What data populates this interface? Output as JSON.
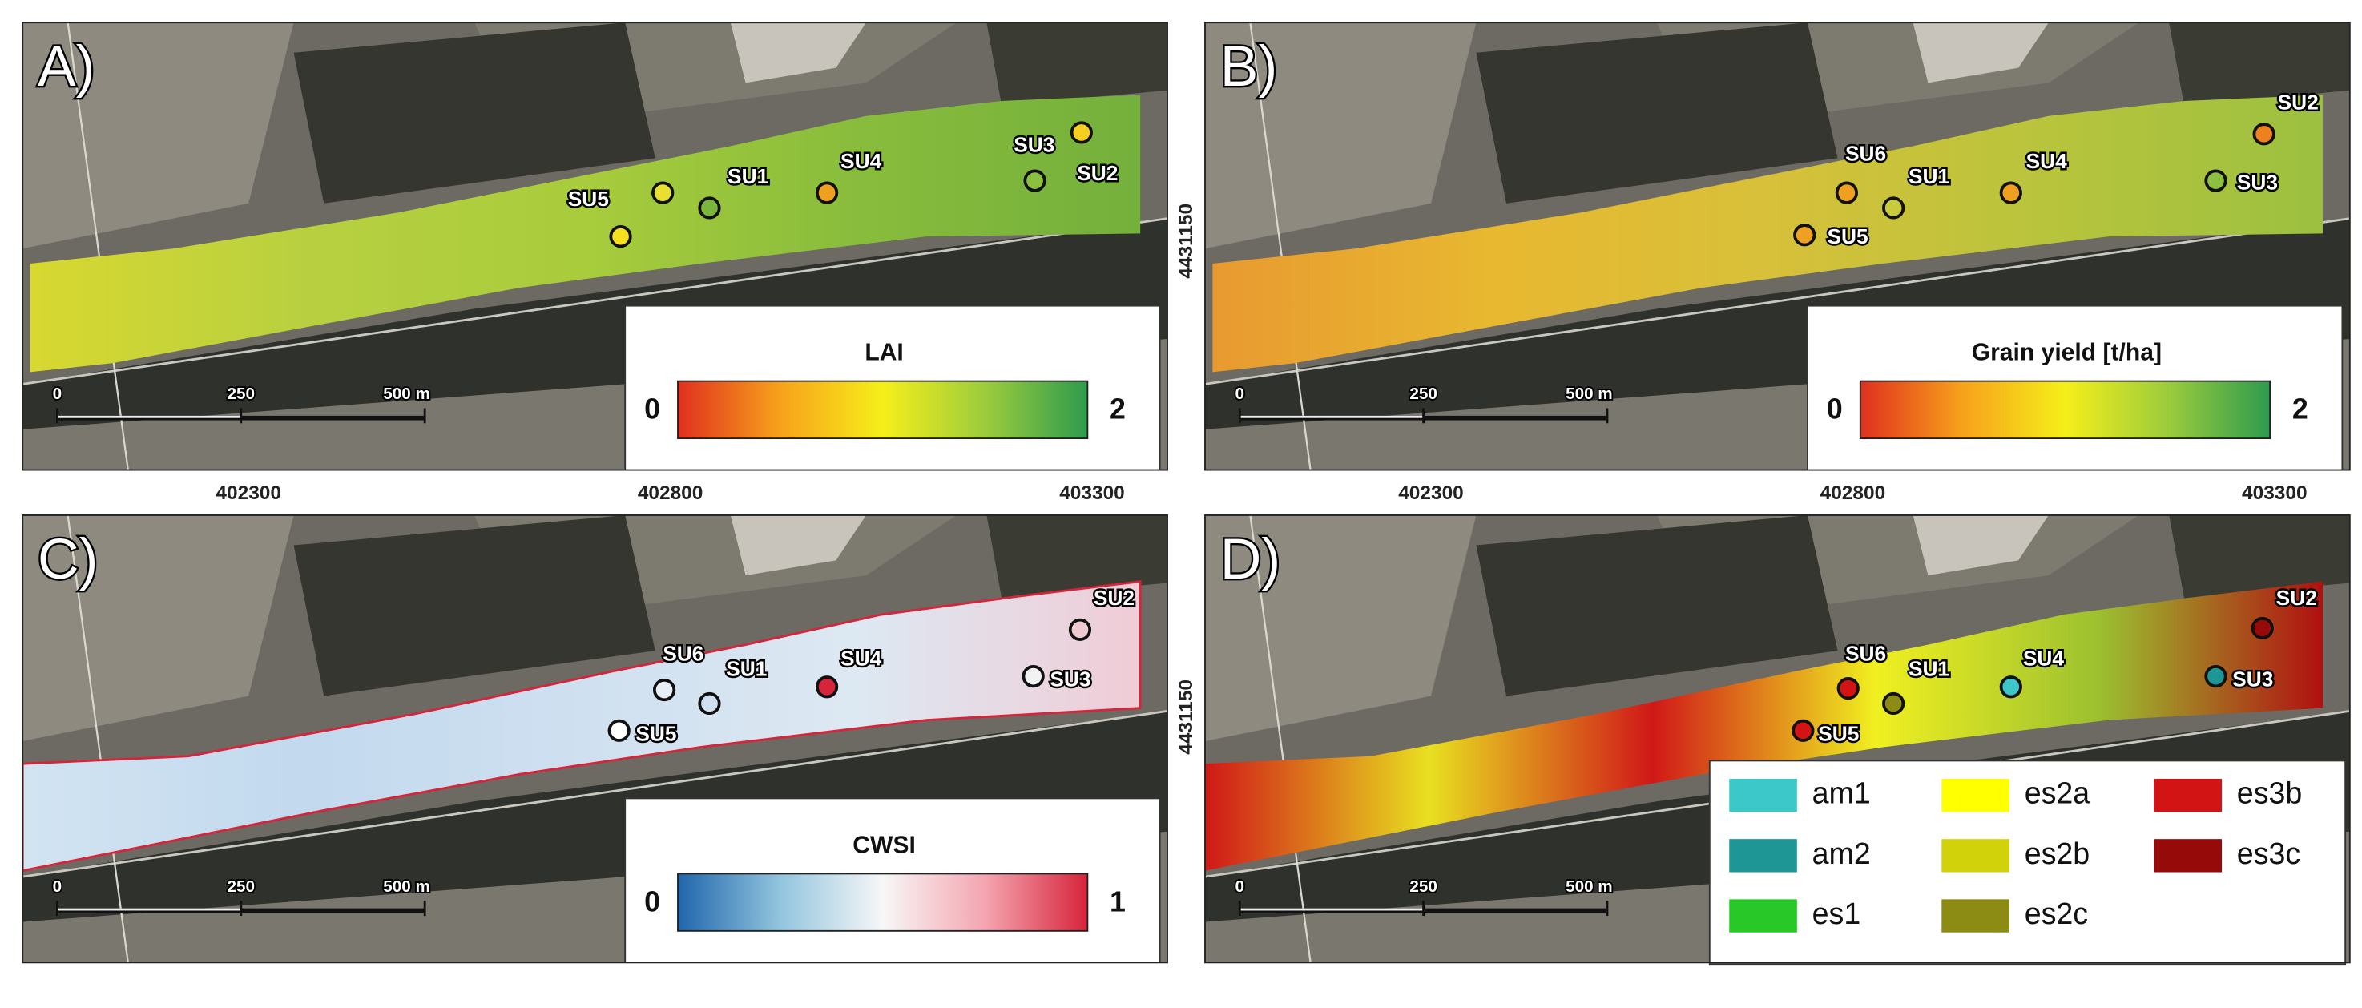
{
  "panels": [
    {
      "letter": "A)",
      "legend": {
        "type": "colorbar",
        "title": "LAI",
        "min": "0",
        "max": "2",
        "colors": [
          "#e0301e",
          "#f7a21b",
          "#f5ef1a",
          "#9ccc3c",
          "#2e9b4e"
        ]
      },
      "sample_units": [
        {
          "label": "SU5",
          "color": "#f5e020"
        },
        {
          "color": "#e8e030"
        },
        {
          "label": "SU1",
          "color": "#7ab53c"
        },
        {
          "label": "SU4",
          "color": "#f0a020"
        },
        {
          "label": "SU3",
          "color": "#8cc040"
        },
        {
          "label": "SU2",
          "color": "#f5d020"
        }
      ]
    },
    {
      "letter": "B)",
      "legend": {
        "type": "colorbar",
        "title": "Grain yield [t/ha]",
        "min": "0",
        "max": "2",
        "colors": [
          "#e0301e",
          "#f7a21b",
          "#f5ef1a",
          "#9ccc3c",
          "#2e9b4e"
        ]
      },
      "sample_units": [
        {
          "label": "SU6",
          "color": "#f0a020"
        },
        {
          "label": "SU1",
          "color": "#c8cc3c"
        },
        {
          "label": "SU5",
          "color": "#f0a020"
        },
        {
          "label": "SU4",
          "color": "#f0a020"
        },
        {
          "label": "SU2",
          "color": "#ee8020"
        },
        {
          "label": "SU3",
          "color": "#8cc040"
        }
      ]
    },
    {
      "letter": "C)",
      "legend": {
        "type": "colorbar",
        "title": "CWSI",
        "min": "0",
        "max": "1",
        "colors": [
          "#2166ac",
          "#92c5de",
          "#f7f7f7",
          "#f4a5b0",
          "#d6243a"
        ]
      },
      "sample_units": [
        {
          "label": "SU6",
          "color": "#e8eef6"
        },
        {
          "label": "SU1",
          "color": "#d0e0f0"
        },
        {
          "label": "SU5",
          "color": "#ffffff"
        },
        {
          "label": "SU4",
          "color": "#d6243a"
        },
        {
          "label": "SU2",
          "color": "#f0c8d0"
        },
        {
          "label": "SU3",
          "color": "#f2f2f2"
        }
      ]
    },
    {
      "letter": "D)",
      "legend": {
        "type": "classes",
        "items": [
          {
            "name": "am1",
            "color": "#3cc8c8"
          },
          {
            "name": "am2",
            "color": "#1e9696"
          },
          {
            "name": "es1",
            "color": "#28c828"
          },
          {
            "name": "es2a",
            "color": "#ffff00"
          },
          {
            "name": "es2b",
            "color": "#d2d20a"
          },
          {
            "name": "es2c",
            "color": "#8c8c14"
          },
          {
            "name": "es3b",
            "color": "#d21414"
          },
          {
            "name": "es3c",
            "color": "#960a0a"
          }
        ]
      },
      "sample_units": [
        {
          "label": "SU6",
          "color": "#d21414"
        },
        {
          "label": "SU1",
          "color": "#8c8c14"
        },
        {
          "label": "SU5",
          "color": "#d21414"
        },
        {
          "label": "SU4",
          "color": "#3cc8c8"
        },
        {
          "label": "SU2",
          "color": "#960a0a"
        },
        {
          "label": "SU3",
          "color": "#1e9696"
        }
      ]
    }
  ],
  "scale_bar": [
    "0",
    "250",
    "500 m"
  ],
  "easting_ticks": [
    "402300",
    "402800",
    "403300"
  ],
  "northing_tick": "4431150"
}
